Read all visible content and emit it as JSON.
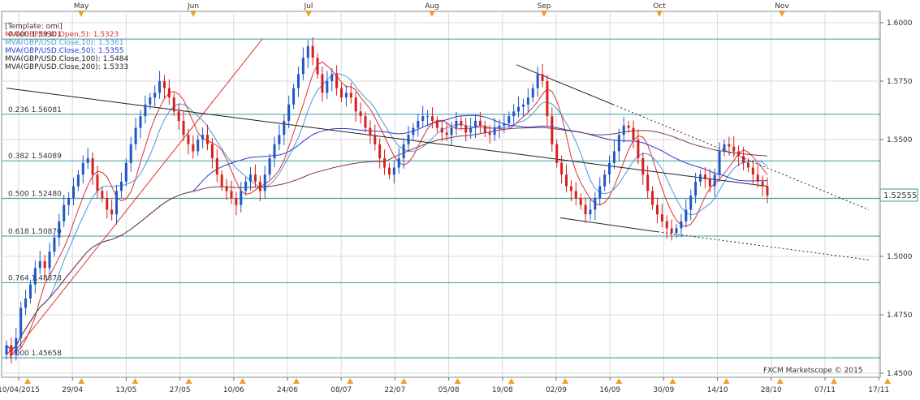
{
  "colors": {
    "background": "#ffffff",
    "grid": "#d8d8d8",
    "fib": "#3a9a9a",
    "up_candle": "#1f57c8",
    "down_candle": "#d81f1f",
    "mva_open5": "#e03030",
    "mva_close10": "#4a9ad8",
    "mva_close50": "#2a3ad0",
    "mva_close100": "#7a3a4a",
    "mva_close200": "#222222",
    "trendline": "#222222",
    "fib_diag": "#e03030",
    "price_tag": "#3a9a9a",
    "month_marker": "#f0a020"
  },
  "watermark": "FXCM Marketscope © 2015",
  "price_tag": "1.52555",
  "legend": [
    {
      "text": "[Template: omi]",
      "color": "#333333"
    },
    {
      "text": "MVA(GBP/USD.Open,5): 1.5323",
      "color": "#e03030"
    },
    {
      "text": "MVA(GBP/USD.Close,10): 1.5361",
      "color": "#4a9ad8"
    },
    {
      "text": "MVA(GBP/USD.Close,50): 1.5355",
      "color": "#2a3ad0"
    },
    {
      "text": "MVA(GBP/USD.Close,100): 1.5484",
      "color": "#222222"
    },
    {
      "text": "MVA(GBP/USD.Close,200): 1.5333",
      "color": "#222222"
    }
  ],
  "chart_data": {
    "type": "candlestick",
    "title": "",
    "instrument": "GBP/USD",
    "y_ticks": [
      "1.6000",
      "1.5750",
      "1.5500",
      "1.5250",
      "1.5000",
      "1.4750",
      "1.4500"
    ],
    "ylim": [
      1.45,
      1.6
    ],
    "x_labels": [
      "10/04/2015",
      "29/04",
      "13/05",
      "27/05",
      "10/06",
      "24/06",
      "08/07",
      "22/07",
      "05/08",
      "19/08",
      "02/09",
      "16/09",
      "30/09",
      "14/10",
      "28/10",
      "07/11",
      "17/11"
    ],
    "month_labels": [
      "May",
      "Jun",
      "Jul",
      "Aug",
      "Sep",
      "Oct",
      "Nov"
    ],
    "fibonacci_levels": [
      {
        "label": "0.000 1.59301",
        "value": 1.59301
      },
      {
        "label": "0.236 1.56081",
        "value": 1.56081
      },
      {
        "label": "0.382 1.54089",
        "value": 1.54089
      },
      {
        "label": "0.500 1.52480",
        "value": 1.5248
      },
      {
        "label": "0.618 1.50870",
        "value": 1.5087
      },
      {
        "label": "0.764 1.48878",
        "value": 1.48878
      },
      {
        "label": "1.000 1.45658",
        "value": 1.45658
      }
    ],
    "last_price": 1.52555,
    "close_series": [
      1.462,
      1.458,
      1.465,
      1.478,
      1.482,
      1.488,
      1.495,
      1.498,
      1.495,
      1.502,
      1.508,
      1.515,
      1.522,
      1.525,
      1.53,
      1.535,
      1.54,
      1.542,
      1.535,
      1.528,
      1.525,
      1.52,
      1.518,
      1.528,
      1.532,
      1.54,
      1.548,
      1.555,
      1.56,
      1.565,
      1.568,
      1.57,
      1.575,
      1.572,
      1.568,
      1.562,
      1.558,
      1.552,
      1.548,
      1.545,
      1.55,
      1.552,
      1.548,
      1.542,
      1.535,
      1.53,
      1.528,
      1.525,
      1.522,
      1.528,
      1.532,
      1.535,
      1.532,
      1.528,
      1.535,
      1.542,
      1.548,
      1.552,
      1.558,
      1.565,
      1.572,
      1.578,
      1.585,
      1.59,
      1.585,
      1.578,
      1.57,
      1.575,
      1.578,
      1.572,
      1.568,
      1.57,
      1.568,
      1.562,
      1.56,
      1.555,
      1.552,
      1.548,
      1.542,
      1.538,
      1.535,
      1.538,
      1.542,
      1.548,
      1.552,
      1.555,
      1.558,
      1.56,
      1.56,
      1.558,
      1.555,
      1.553,
      1.552,
      1.555,
      1.558,
      1.556,
      1.553,
      1.555,
      1.558,
      1.556,
      1.553,
      1.552,
      1.555,
      1.556,
      1.557,
      1.56,
      1.562,
      1.564,
      1.565,
      1.568,
      1.572,
      1.578,
      1.575,
      1.56,
      1.548,
      1.54,
      1.535,
      1.53,
      1.528,
      1.525,
      1.522,
      1.518,
      1.52,
      1.525,
      1.53,
      1.535,
      1.54,
      1.545,
      1.552,
      1.556,
      1.555,
      1.55,
      1.542,
      1.535,
      1.528,
      1.522,
      1.518,
      1.515,
      1.512,
      1.51,
      1.512,
      1.515,
      1.52,
      1.526,
      1.532,
      1.535,
      1.533,
      1.53,
      1.535,
      1.545,
      1.548,
      1.547,
      1.545,
      1.543,
      1.54,
      1.538,
      1.535,
      1.532,
      1.53,
      1.526
    ]
  }
}
